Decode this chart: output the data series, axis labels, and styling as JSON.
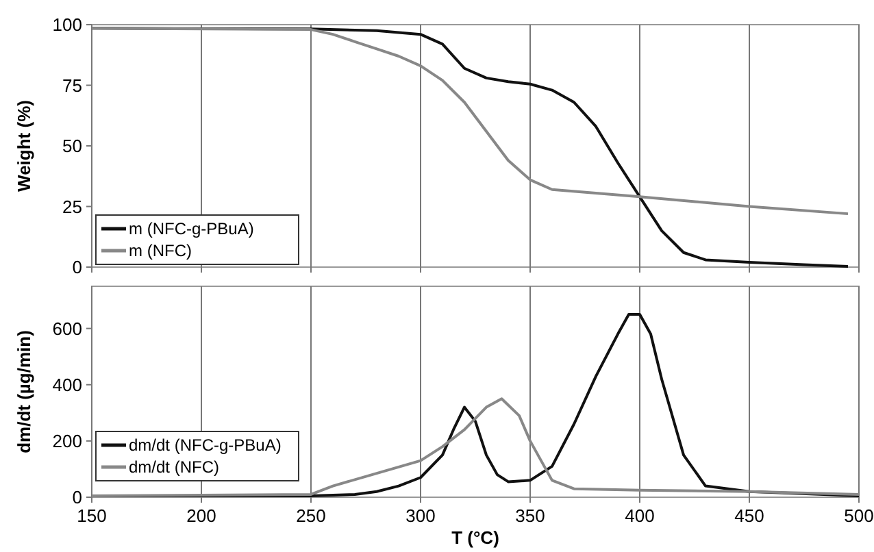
{
  "chart_data": [
    {
      "type": "line",
      "ylabel": "Weight (%)",
      "x": [
        150,
        250,
        280,
        300,
        310,
        320,
        330,
        340,
        350,
        360,
        370,
        380,
        390,
        400,
        410,
        420,
        430,
        450,
        475,
        495
      ],
      "xlim": [
        150,
        500
      ],
      "xticks": [
        150,
        200,
        250,
        300,
        350,
        400,
        450,
        500
      ],
      "ylim": [
        0,
        100
      ],
      "yticks": [
        0,
        25,
        50,
        75,
        100
      ],
      "grid": "x",
      "legend": "bottom left",
      "tick_labels": "y",
      "series": [
        {
          "name": "m (NFC-g-PBuA)",
          "color": "#111111",
          "values": [
            98.5,
            98.2,
            97.5,
            96,
            92,
            82,
            78,
            76.5,
            75.5,
            73,
            68,
            58,
            43,
            29,
            15,
            6,
            3,
            2,
            1,
            0.3
          ]
        },
        {
          "name": "m (NFC)",
          "color": "#888888",
          "x": [
            150,
            250,
            260,
            270,
            280,
            290,
            300,
            310,
            320,
            330,
            340,
            350,
            360,
            380,
            400,
            450,
            495
          ],
          "values": [
            98.5,
            98,
            96,
            93,
            90,
            87,
            83,
            77,
            68,
            56,
            44,
            36,
            32,
            30.5,
            29,
            25,
            22
          ]
        }
      ]
    },
    {
      "type": "line",
      "xlabel": "T (°C)",
      "ylabel": "dm/dt (µg/min)",
      "x": [
        150,
        200,
        250,
        270,
        280,
        290,
        300,
        310,
        315,
        320,
        325,
        330,
        335,
        340,
        350,
        360,
        370,
        380,
        390,
        395,
        400,
        405,
        410,
        420,
        430,
        450,
        500
      ],
      "xlim": [
        150,
        500
      ],
      "xticks": [
        150,
        200,
        250,
        300,
        350,
        400,
        450,
        500
      ],
      "ylim": [
        0,
        750
      ],
      "yticks": [
        0,
        200,
        400,
        600
      ],
      "grid": "x",
      "legend": "bottom left",
      "series": [
        {
          "name": "dm/dt (NFC-g-PBuA)",
          "color": "#111111",
          "values": [
            5,
            5,
            5,
            10,
            20,
            40,
            70,
            150,
            240,
            320,
            270,
            150,
            80,
            55,
            60,
            110,
            260,
            430,
            580,
            650,
            650,
            580,
            420,
            150,
            40,
            20,
            5
          ]
        },
        {
          "name": "dm/dt (NFC)",
          "color": "#888888",
          "x": [
            150,
            250,
            260,
            280,
            300,
            310,
            320,
            330,
            337,
            345,
            350,
            360,
            370,
            400,
            450,
            500
          ],
          "values": [
            5,
            10,
            40,
            85,
            130,
            180,
            240,
            320,
            350,
            290,
            200,
            60,
            30,
            25,
            20,
            10
          ]
        }
      ]
    }
  ]
}
